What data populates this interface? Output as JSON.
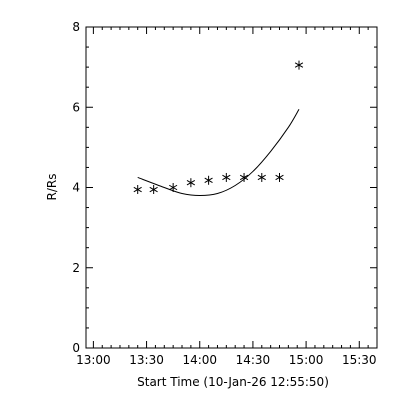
{
  "chart_data": {
    "type": "scatter",
    "xlabel": "Start Time (10-Jan-26 12:55:50)",
    "ylabel": "R/Rs",
    "xlim": [
      "12:55:50",
      "15:40:00"
    ],
    "ylim": [
      0,
      8
    ],
    "x_ticks": [
      "13:00",
      "13:30",
      "14:00",
      "14:30",
      "15:00",
      "15:30"
    ],
    "y_ticks": [
      "0",
      "2",
      "4",
      "6",
      "8"
    ],
    "grid": false,
    "series": [
      {
        "marker": "asterisk",
        "x": [
          "13:25",
          "13:34",
          "13:45",
          "13:55",
          "14:05",
          "14:15",
          "14:25",
          "14:35",
          "14:45",
          "14:56"
        ],
        "y": [
          3.95,
          3.95,
          4.0,
          4.12,
          4.18,
          4.25,
          4.25,
          4.25,
          4.25,
          7.05
        ]
      }
    ],
    "fit_curve": {
      "x": [
        "13:25",
        "13:40",
        "13:50",
        "14:00",
        "14:10",
        "14:20",
        "14:30",
        "14:40",
        "14:50",
        "14:56"
      ],
      "y": [
        4.25,
        4.0,
        3.85,
        3.8,
        3.85,
        4.05,
        4.4,
        4.9,
        5.5,
        5.95
      ]
    },
    "colors": {
      "foreground": "#000000",
      "background": "#ffffff"
    }
  }
}
